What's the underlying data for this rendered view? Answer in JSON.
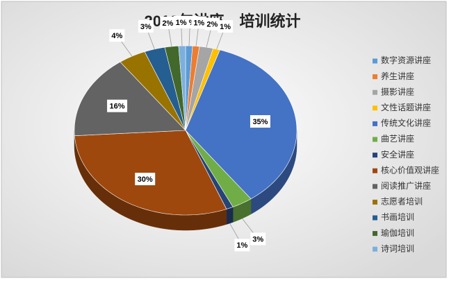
{
  "chart_data": {
    "type": "pie",
    "title": "2016年讲座、培训统计",
    "categories": [
      "数字资源讲座",
      "养生讲座",
      "摄影讲座",
      "文性话题讲座",
      "传统文化讲座",
      "曲艺讲座",
      "安全讲座",
      "核心价值观讲座",
      "阅读推广讲座",
      "志愿者培训",
      "书画培训",
      "瑜伽培训",
      "诗词培训"
    ],
    "values": [
      1,
      1,
      2,
      1,
      35,
      3,
      1,
      30,
      16,
      4,
      3,
      2,
      1
    ],
    "value_labels": [
      "1%",
      "1%",
      "2%",
      "1%",
      "35%",
      "3%",
      "1%",
      "30%",
      "16%",
      "4%",
      "3%",
      "2%",
      "1%"
    ],
    "colors": [
      "#5b9bd5",
      "#ed7d31",
      "#a5a5a5",
      "#ffc000",
      "#4472c4",
      "#70ad47",
      "#264478",
      "#9e480e",
      "#636363",
      "#997300",
      "#255e91",
      "#43682b",
      "#7cafdd"
    ],
    "legend": "right"
  }
}
